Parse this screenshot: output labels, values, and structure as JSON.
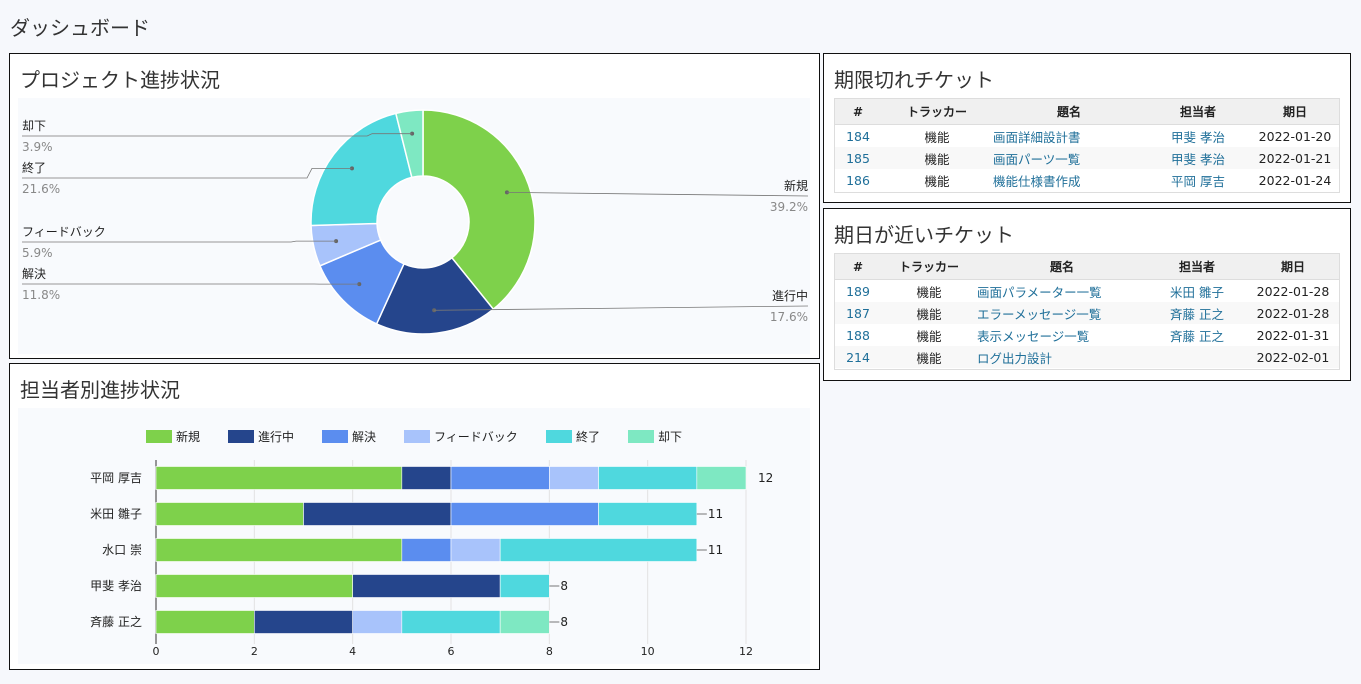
{
  "page": {
    "title": "ダッシュボード"
  },
  "colors": {
    "新規": "#7ed14b",
    "進行中": "#25458c",
    "解決": "#5b8def",
    "フィードバック": "#a8c3fb",
    "終了": "#4fd8de",
    "却下": "#7ee8c2"
  },
  "project_progress": {
    "title": "プロジェクト進捗状況",
    "chart_data": {
      "type": "pie",
      "donut": true,
      "slices": [
        {
          "label": "新規",
          "percent": 39.2,
          "percent_label": "39.2%"
        },
        {
          "label": "進行中",
          "percent": 17.6,
          "percent_label": "17.6%"
        },
        {
          "label": "解決",
          "percent": 11.8,
          "percent_label": "11.8%"
        },
        {
          "label": "フィードバック",
          "percent": 5.9,
          "percent_label": "5.9%"
        },
        {
          "label": "終了",
          "percent": 21.6,
          "percent_label": "21.6%"
        },
        {
          "label": "却下",
          "percent": 3.9,
          "percent_label": "3.9%"
        }
      ]
    }
  },
  "assignee_progress": {
    "title": "担当者別進捗状況",
    "chart_data": {
      "type": "bar",
      "orientation": "horizontal",
      "stacked": true,
      "categories": [
        "平岡 厚吉",
        "米田 雛子",
        "水口 崇",
        "甲斐 孝治",
        "斉藤 正之"
      ],
      "series": [
        {
          "name": "新規",
          "values": [
            5,
            3,
            5,
            4,
            2
          ]
        },
        {
          "name": "進行中",
          "values": [
            1,
            3,
            0,
            3,
            2
          ]
        },
        {
          "name": "解決",
          "values": [
            2,
            3,
            1,
            0,
            0
          ]
        },
        {
          "name": "フィードバック",
          "values": [
            1,
            0,
            1,
            0,
            1
          ]
        },
        {
          "name": "終了",
          "values": [
            2,
            2,
            4,
            1,
            2
          ]
        },
        {
          "name": "却下",
          "values": [
            1,
            0,
            0,
            0,
            1
          ]
        }
      ],
      "totals": [
        12,
        11,
        11,
        8,
        8
      ],
      "xlim": [
        0,
        12
      ],
      "xticks": [
        0,
        2,
        4,
        6,
        8,
        10,
        12
      ],
      "grid": true,
      "legend": "top"
    }
  },
  "overdue": {
    "title": "期限切れチケット",
    "columns": [
      "#",
      "トラッカー",
      "題名",
      "担当者",
      "期日"
    ],
    "rows": [
      {
        "id": "184",
        "tracker": "機能",
        "subject": "画面詳細設計書",
        "assignee": "甲斐 孝治",
        "due": "2022-01-20"
      },
      {
        "id": "185",
        "tracker": "機能",
        "subject": "画面パーツ一覧",
        "assignee": "甲斐 孝治",
        "due": "2022-01-21"
      },
      {
        "id": "186",
        "tracker": "機能",
        "subject": "機能仕様書作成",
        "assignee": "平岡 厚吉",
        "due": "2022-01-24"
      }
    ]
  },
  "upcoming": {
    "title": "期日が近いチケット",
    "columns": [
      "#",
      "トラッカー",
      "題名",
      "担当者",
      "期日"
    ],
    "rows": [
      {
        "id": "189",
        "tracker": "機能",
        "subject": "画面パラメーター一覧",
        "assignee": "米田 雛子",
        "due": "2022-01-28"
      },
      {
        "id": "187",
        "tracker": "機能",
        "subject": "エラーメッセージ一覧",
        "assignee": "斉藤 正之",
        "due": "2022-01-28"
      },
      {
        "id": "188",
        "tracker": "機能",
        "subject": "表示メッセージ一覧",
        "assignee": "斉藤 正之",
        "due": "2022-01-31"
      },
      {
        "id": "214",
        "tracker": "機能",
        "subject": "ログ出力設計",
        "assignee": "",
        "due": "2022-02-01"
      }
    ]
  }
}
